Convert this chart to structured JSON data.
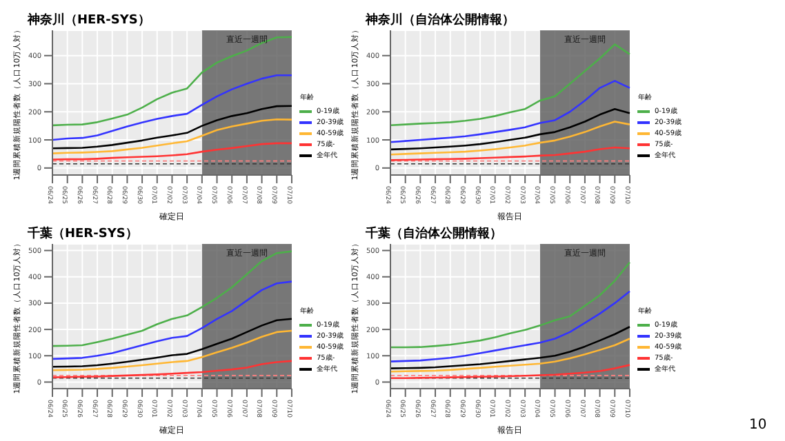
{
  "chart_data": [
    {
      "type": "line",
      "title": "神奈川（HER-SYS）",
      "xlabel": "確定日",
      "ylabel": "1週間累積新規陽性者数（人口10万人対）",
      "legend_title": "年齢",
      "legend": "right",
      "grid": true,
      "line_style": "solid",
      "marker": "none",
      "categories": [
        "06/24",
        "06/25",
        "06/26",
        "06/27",
        "06/28",
        "06/29",
        "06/30",
        "07/01",
        "07/02",
        "07/03",
        "07/04",
        "07/05",
        "07/06",
        "07/07",
        "07/08",
        "07/09",
        "07/10"
      ],
      "ylim": [
        -25,
        490
      ],
      "yticks": [
        0,
        100,
        200,
        300,
        400
      ],
      "bands": [
        {
          "axis": "x",
          "from": "07/04",
          "to": "07/10",
          "label": "直近一週間",
          "color": "#5a5a5a"
        }
      ],
      "ref_lines": [
        {
          "axis": "y",
          "value": 25,
          "color": "#ff8080",
          "line_style": "dashed"
        },
        {
          "axis": "y",
          "value": 15,
          "color": "#333333",
          "line_style": "dashed"
        }
      ],
      "series": [
        {
          "name": "0-19歳",
          "color": "#4daf4a",
          "values": [
            152,
            154,
            155,
            163,
            176,
            190,
            215,
            245,
            268,
            283,
            340,
            375,
            398,
            418,
            445,
            465,
            466
          ]
        },
        {
          "name": "20-39歳",
          "color": "#3333ff",
          "values": [
            100,
            105,
            107,
            116,
            132,
            148,
            162,
            175,
            185,
            193,
            225,
            255,
            280,
            300,
            318,
            330,
            330
          ]
        },
        {
          "name": "40-59歳",
          "color": "#ffb733",
          "values": [
            52,
            54,
            55,
            57,
            60,
            66,
            72,
            80,
            88,
            95,
            115,
            135,
            148,
            158,
            168,
            173,
            172
          ]
        },
        {
          "name": "75歳-",
          "color": "#ff3333",
          "values": [
            30,
            31,
            31,
            33,
            36,
            38,
            40,
            42,
            45,
            49,
            58,
            65,
            71,
            78,
            85,
            88,
            88
          ]
        },
        {
          "name": "全年代",
          "color": "#000000",
          "values": [
            70,
            71,
            72,
            76,
            82,
            90,
            98,
            108,
            116,
            125,
            150,
            170,
            185,
            195,
            210,
            220,
            221
          ]
        }
      ]
    },
    {
      "type": "line",
      "title": "神奈川（自治体公開情報）",
      "xlabel": "報告日",
      "ylabel": "1週間累積新規陽性者数（人口10万人対）",
      "legend_title": "年齢",
      "legend": "right",
      "grid": true,
      "line_style": "solid",
      "marker": "none",
      "categories": [
        "06/24",
        "06/25",
        "06/26",
        "06/27",
        "06/28",
        "06/29",
        "06/30",
        "07/01",
        "07/02",
        "07/03",
        "07/04",
        "07/05",
        "07/06",
        "07/07",
        "07/08",
        "07/09",
        "07/10"
      ],
      "ylim": [
        -25,
        490
      ],
      "yticks": [
        0,
        100,
        200,
        300,
        400
      ],
      "bands": [
        {
          "axis": "x",
          "from": "07/04",
          "to": "07/10",
          "label": "直近一週間",
          "color": "#5a5a5a"
        }
      ],
      "ref_lines": [
        {
          "axis": "y",
          "value": 25,
          "color": "#ff8080",
          "line_style": "dashed"
        },
        {
          "axis": "y",
          "value": 15,
          "color": "#333333",
          "line_style": "dashed"
        }
      ],
      "series": [
        {
          "name": "0-19歳",
          "color": "#4daf4a",
          "values": [
            152,
            155,
            158,
            160,
            163,
            168,
            175,
            185,
            198,
            210,
            240,
            255,
            300,
            345,
            390,
            440,
            405
          ]
        },
        {
          "name": "20-39歳",
          "color": "#3333ff",
          "values": [
            92,
            96,
            100,
            104,
            108,
            113,
            120,
            128,
            136,
            145,
            160,
            170,
            200,
            240,
            285,
            310,
            285
          ]
        },
        {
          "name": "40-59歳",
          "color": "#ffb733",
          "values": [
            48,
            50,
            52,
            54,
            56,
            58,
            62,
            67,
            73,
            80,
            90,
            98,
            112,
            128,
            148,
            165,
            155
          ]
        },
        {
          "name": "75歳-",
          "color": "#ff3333",
          "values": [
            28,
            29,
            30,
            31,
            32,
            33,
            35,
            37,
            39,
            41,
            44,
            46,
            52,
            58,
            67,
            73,
            70
          ]
        },
        {
          "name": "全年代",
          "color": "#000000",
          "values": [
            66,
            68,
            70,
            73,
            76,
            80,
            85,
            92,
            100,
            108,
            120,
            128,
            145,
            165,
            190,
            210,
            195
          ]
        }
      ]
    },
    {
      "type": "line",
      "title": "千葉（HER-SYS）",
      "xlabel": "確定日",
      "ylabel": "1週間累積新規陽性者数（人口10万人対）",
      "legend_title": "年齢",
      "legend": "right",
      "grid": true,
      "line_style": "solid",
      "marker": "none",
      "categories": [
        "06/24",
        "06/25",
        "06/26",
        "06/27",
        "06/28",
        "06/29",
        "06/30",
        "07/01",
        "07/02",
        "07/03",
        "07/04",
        "07/05",
        "07/06",
        "07/07",
        "07/08",
        "07/09",
        "07/10"
      ],
      "ylim": [
        -25,
        525
      ],
      "yticks": [
        0,
        100,
        200,
        300,
        400,
        500
      ],
      "bands": [
        {
          "axis": "x",
          "from": "07/04",
          "to": "07/10",
          "label": "直近一週間",
          "color": "#5a5a5a"
        }
      ],
      "ref_lines": [
        {
          "axis": "y",
          "value": 25,
          "color": "#ff8080",
          "line_style": "dashed"
        },
        {
          "axis": "y",
          "value": 15,
          "color": "#333333",
          "line_style": "dashed"
        }
      ],
      "series": [
        {
          "name": "0-19歳",
          "color": "#4daf4a",
          "values": [
            137,
            138,
            140,
            152,
            165,
            180,
            195,
            220,
            240,
            253,
            285,
            320,
            360,
            410,
            460,
            490,
            497
          ]
        },
        {
          "name": "20-39歳",
          "color": "#3333ff",
          "values": [
            88,
            90,
            92,
            100,
            110,
            125,
            140,
            155,
            168,
            175,
            205,
            240,
            270,
            310,
            350,
            375,
            382
          ]
        },
        {
          "name": "40-59歳",
          "color": "#ffb733",
          "values": [
            45,
            46,
            47,
            50,
            54,
            59,
            64,
            70,
            76,
            80,
            95,
            113,
            130,
            150,
            172,
            190,
            195
          ]
        },
        {
          "name": "75歳-",
          "color": "#ff3333",
          "values": [
            18,
            19,
            20,
            21,
            23,
            25,
            27,
            29,
            32,
            35,
            38,
            43,
            48,
            55,
            68,
            76,
            80
          ]
        },
        {
          "name": "全年代",
          "color": "#000000",
          "values": [
            58,
            59,
            60,
            64,
            70,
            77,
            85,
            93,
            102,
            107,
            125,
            145,
            165,
            190,
            215,
            235,
            240
          ]
        }
      ]
    },
    {
      "type": "line",
      "title": "千葉（自治体公開情報）",
      "xlabel": "報告日",
      "ylabel": "1週間累積新規陽性者数（人口10万人対）",
      "legend_title": "年齢",
      "legend": "right",
      "grid": true,
      "line_style": "solid",
      "marker": "none",
      "categories": [
        "06/24",
        "06/25",
        "06/26",
        "06/27",
        "06/28",
        "06/29",
        "06/30",
        "07/01",
        "07/02",
        "07/03",
        "07/04",
        "07/05",
        "07/06",
        "07/07",
        "07/08",
        "07/09",
        "07/10"
      ],
      "ylim": [
        -25,
        525
      ],
      "yticks": [
        0,
        100,
        200,
        300,
        400,
        500
      ],
      "bands": [
        {
          "axis": "x",
          "from": "07/04",
          "to": "07/10",
          "label": "直近一週間",
          "color": "#5a5a5a"
        }
      ],
      "ref_lines": [
        {
          "axis": "y",
          "value": 25,
          "color": "#ff8080",
          "line_style": "dashed"
        },
        {
          "axis": "y",
          "value": 15,
          "color": "#333333",
          "line_style": "dashed"
        }
      ],
      "annotations": [
        "10"
      ],
      "series": [
        {
          "name": "0-19歳",
          "color": "#4daf4a",
          "values": [
            132,
            132,
            133,
            137,
            142,
            150,
            158,
            170,
            185,
            198,
            215,
            235,
            250,
            290,
            330,
            385,
            455
          ]
        },
        {
          "name": "20-39歳",
          "color": "#3333ff",
          "values": [
            78,
            80,
            82,
            87,
            92,
            100,
            110,
            120,
            130,
            140,
            150,
            165,
            190,
            225,
            260,
            300,
            345
          ]
        },
        {
          "name": "40-59歳",
          "color": "#ffb733",
          "values": [
            40,
            41,
            42,
            43,
            46,
            50,
            54,
            58,
            62,
            66,
            70,
            78,
            90,
            105,
            122,
            140,
            165
          ]
        },
        {
          "name": "75歳-",
          "color": "#ff3333",
          "values": [
            15,
            15,
            16,
            17,
            18,
            19,
            20,
            21,
            22,
            24,
            26,
            28,
            32,
            36,
            42,
            52,
            65
          ]
        },
        {
          "name": "全年代",
          "color": "#000000",
          "values": [
            52,
            53,
            54,
            56,
            60,
            64,
            68,
            74,
            80,
            86,
            92,
            100,
            115,
            135,
            158,
            182,
            210
          ]
        }
      ]
    }
  ]
}
